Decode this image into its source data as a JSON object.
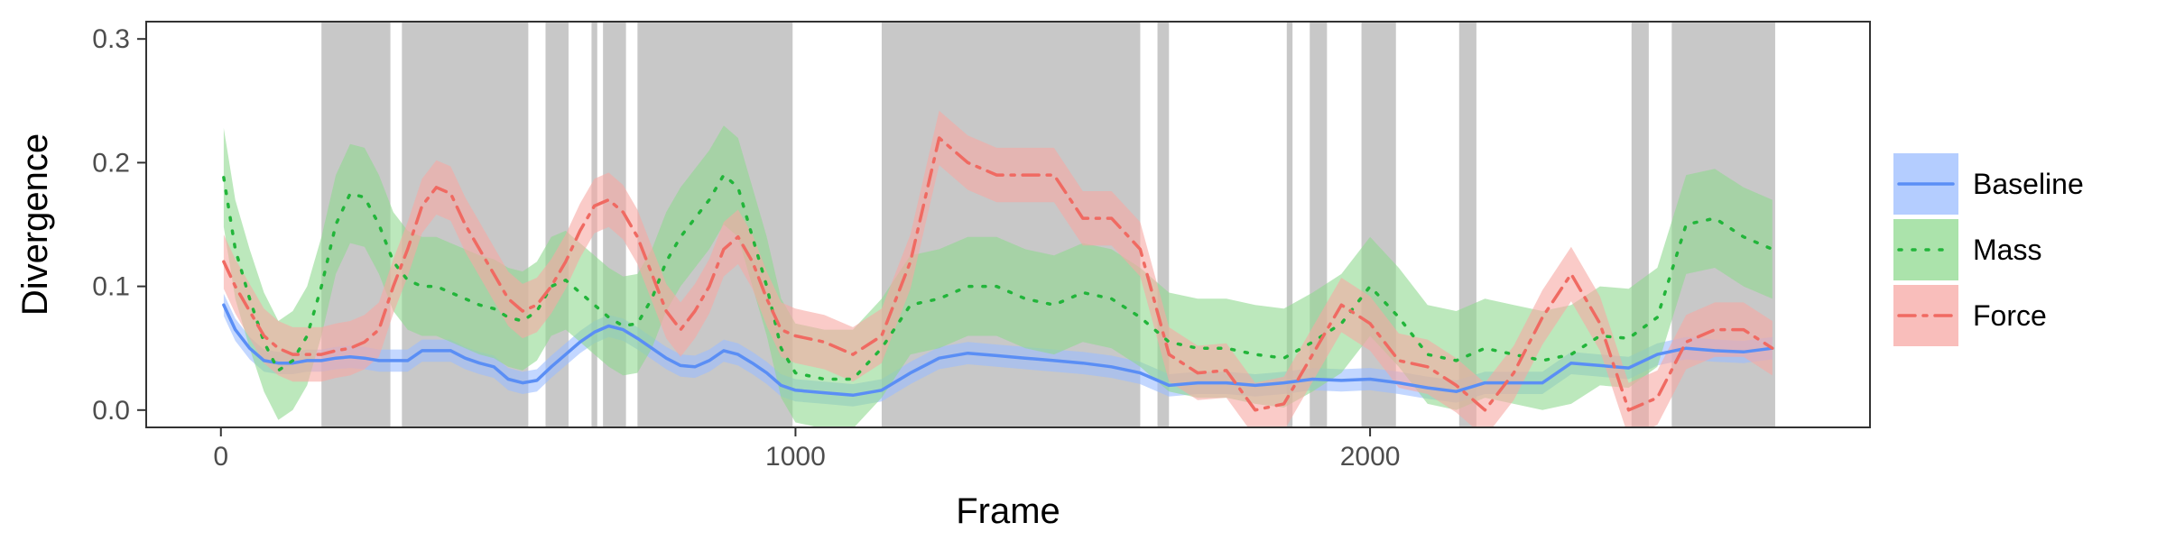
{
  "chart_data": {
    "type": "line",
    "title": "",
    "xlabel": "Frame",
    "ylabel": "Divergence",
    "xlim": [
      -130,
      2870
    ],
    "ylim": [
      -0.014,
      0.314
    ],
    "x_ticks": [
      0,
      1000,
      2000
    ],
    "x_tick_labels": [
      "0",
      "1000",
      "2000"
    ],
    "y_ticks": [
      0.0,
      0.1,
      0.2,
      0.3
    ],
    "y_tick_labels": [
      "0.0",
      "0.1",
      "0.2",
      "0.3"
    ],
    "grid": false,
    "legend_position": "right",
    "shaded_intervals": [
      [
        175,
        295
      ],
      [
        315,
        535
      ],
      [
        565,
        605
      ],
      [
        645,
        655
      ],
      [
        665,
        705
      ],
      [
        725,
        995
      ],
      [
        1150,
        1600
      ],
      [
        1630,
        1650
      ],
      [
        1855,
        1865
      ],
      [
        1895,
        1925
      ],
      [
        1985,
        2045
      ],
      [
        2155,
        2185
      ],
      [
        2455,
        2485
      ],
      [
        2525,
        2705
      ]
    ],
    "shade_color": "#c8c8c8",
    "series": [
      {
        "name": "Baseline",
        "color": "#5a8ef5",
        "band_color": "#9bbcff",
        "linestyle": "solid",
        "points": [
          [
            5,
            0.085
          ],
          [
            25,
            0.065
          ],
          [
            50,
            0.05
          ],
          [
            75,
            0.04
          ],
          [
            100,
            0.038
          ],
          [
            125,
            0.038
          ],
          [
            150,
            0.04
          ],
          [
            175,
            0.04
          ],
          [
            200,
            0.042
          ],
          [
            225,
            0.043
          ],
          [
            250,
            0.042
          ],
          [
            275,
            0.04
          ],
          [
            300,
            0.04
          ],
          [
            325,
            0.04
          ],
          [
            350,
            0.048
          ],
          [
            375,
            0.048
          ],
          [
            400,
            0.048
          ],
          [
            425,
            0.042
          ],
          [
            450,
            0.038
          ],
          [
            475,
            0.035
          ],
          [
            500,
            0.025
          ],
          [
            525,
            0.022
          ],
          [
            550,
            0.024
          ],
          [
            575,
            0.035
          ],
          [
            600,
            0.045
          ],
          [
            625,
            0.055
          ],
          [
            650,
            0.063
          ],
          [
            675,
            0.068
          ],
          [
            700,
            0.065
          ],
          [
            725,
            0.058
          ],
          [
            750,
            0.05
          ],
          [
            775,
            0.042
          ],
          [
            800,
            0.036
          ],
          [
            825,
            0.035
          ],
          [
            850,
            0.04
          ],
          [
            875,
            0.048
          ],
          [
            900,
            0.045
          ],
          [
            925,
            0.038
          ],
          [
            950,
            0.03
          ],
          [
            975,
            0.02
          ],
          [
            1000,
            0.016
          ],
          [
            1050,
            0.014
          ],
          [
            1100,
            0.012
          ],
          [
            1150,
            0.016
          ],
          [
            1200,
            0.03
          ],
          [
            1250,
            0.042
          ],
          [
            1300,
            0.046
          ],
          [
            1350,
            0.044
          ],
          [
            1400,
            0.042
          ],
          [
            1450,
            0.04
          ],
          [
            1500,
            0.038
          ],
          [
            1550,
            0.035
          ],
          [
            1600,
            0.03
          ],
          [
            1650,
            0.02
          ],
          [
            1700,
            0.022
          ],
          [
            1750,
            0.022
          ],
          [
            1800,
            0.02
          ],
          [
            1850,
            0.022
          ],
          [
            1900,
            0.025
          ],
          [
            1950,
            0.024
          ],
          [
            2000,
            0.025
          ],
          [
            2050,
            0.022
          ],
          [
            2100,
            0.018
          ],
          [
            2150,
            0.015
          ],
          [
            2200,
            0.022
          ],
          [
            2250,
            0.022
          ],
          [
            2300,
            0.022
          ],
          [
            2350,
            0.038
          ],
          [
            2400,
            0.036
          ],
          [
            2450,
            0.034
          ],
          [
            2500,
            0.045
          ],
          [
            2550,
            0.05
          ],
          [
            2600,
            0.048
          ],
          [
            2650,
            0.047
          ],
          [
            2700,
            0.05
          ]
        ],
        "band_halfwidth": 0.009
      },
      {
        "name": "Mass",
        "color": "#22b53a",
        "band_color": "#8fd98f",
        "linestyle": "dotted",
        "points": [
          [
            5,
            0.188
          ],
          [
            25,
            0.13
          ],
          [
            50,
            0.09
          ],
          [
            75,
            0.055
          ],
          [
            100,
            0.032
          ],
          [
            125,
            0.04
          ],
          [
            150,
            0.06
          ],
          [
            175,
            0.1
          ],
          [
            200,
            0.15
          ],
          [
            225,
            0.175
          ],
          [
            250,
            0.172
          ],
          [
            275,
            0.15
          ],
          [
            300,
            0.12
          ],
          [
            325,
            0.105
          ],
          [
            350,
            0.1
          ],
          [
            375,
            0.1
          ],
          [
            400,
            0.095
          ],
          [
            425,
            0.09
          ],
          [
            450,
            0.085
          ],
          [
            475,
            0.082
          ],
          [
            500,
            0.075
          ],
          [
            525,
            0.072
          ],
          [
            550,
            0.08
          ],
          [
            575,
            0.1
          ],
          [
            600,
            0.105
          ],
          [
            625,
            0.095
          ],
          [
            650,
            0.085
          ],
          [
            675,
            0.075
          ],
          [
            700,
            0.068
          ],
          [
            725,
            0.07
          ],
          [
            750,
            0.09
          ],
          [
            775,
            0.12
          ],
          [
            800,
            0.14
          ],
          [
            825,
            0.155
          ],
          [
            850,
            0.17
          ],
          [
            875,
            0.19
          ],
          [
            900,
            0.18
          ],
          [
            925,
            0.14
          ],
          [
            950,
            0.1
          ],
          [
            975,
            0.05
          ],
          [
            1000,
            0.03
          ],
          [
            1050,
            0.025
          ],
          [
            1100,
            0.025
          ],
          [
            1150,
            0.05
          ],
          [
            1200,
            0.085
          ],
          [
            1250,
            0.09
          ],
          [
            1300,
            0.1
          ],
          [
            1350,
            0.1
          ],
          [
            1400,
            0.09
          ],
          [
            1450,
            0.085
          ],
          [
            1500,
            0.095
          ],
          [
            1550,
            0.09
          ],
          [
            1600,
            0.075
          ],
          [
            1650,
            0.055
          ],
          [
            1700,
            0.05
          ],
          [
            1750,
            0.05
          ],
          [
            1800,
            0.045
          ],
          [
            1850,
            0.042
          ],
          [
            1900,
            0.055
          ],
          [
            1950,
            0.07
          ],
          [
            2000,
            0.1
          ],
          [
            2050,
            0.075
          ],
          [
            2100,
            0.045
          ],
          [
            2150,
            0.04
          ],
          [
            2200,
            0.05
          ],
          [
            2250,
            0.045
          ],
          [
            2300,
            0.04
          ],
          [
            2350,
            0.045
          ],
          [
            2400,
            0.06
          ],
          [
            2450,
            0.058
          ],
          [
            2500,
            0.075
          ],
          [
            2550,
            0.15
          ],
          [
            2600,
            0.155
          ],
          [
            2650,
            0.14
          ],
          [
            2700,
            0.13
          ]
        ],
        "band_halfwidth": 0.04
      },
      {
        "name": "Force",
        "color": "#f06a62",
        "band_color": "#f7a8a4",
        "linestyle": "dashdot",
        "points": [
          [
            5,
            0.12
          ],
          [
            25,
            0.1
          ],
          [
            50,
            0.08
          ],
          [
            75,
            0.06
          ],
          [
            100,
            0.05
          ],
          [
            125,
            0.045
          ],
          [
            150,
            0.045
          ],
          [
            175,
            0.045
          ],
          [
            200,
            0.048
          ],
          [
            225,
            0.05
          ],
          [
            250,
            0.055
          ],
          [
            275,
            0.065
          ],
          [
            300,
            0.1
          ],
          [
            325,
            0.13
          ],
          [
            350,
            0.165
          ],
          [
            375,
            0.18
          ],
          [
            400,
            0.175
          ],
          [
            425,
            0.15
          ],
          [
            450,
            0.13
          ],
          [
            475,
            0.11
          ],
          [
            500,
            0.09
          ],
          [
            525,
            0.08
          ],
          [
            550,
            0.085
          ],
          [
            575,
            0.1
          ],
          [
            600,
            0.12
          ],
          [
            625,
            0.145
          ],
          [
            650,
            0.165
          ],
          [
            675,
            0.17
          ],
          [
            700,
            0.16
          ],
          [
            725,
            0.14
          ],
          [
            750,
            0.11
          ],
          [
            775,
            0.08
          ],
          [
            800,
            0.065
          ],
          [
            825,
            0.08
          ],
          [
            850,
            0.1
          ],
          [
            875,
            0.13
          ],
          [
            900,
            0.14
          ],
          [
            925,
            0.12
          ],
          [
            950,
            0.09
          ],
          [
            975,
            0.065
          ],
          [
            1000,
            0.06
          ],
          [
            1050,
            0.055
          ],
          [
            1100,
            0.045
          ],
          [
            1150,
            0.06
          ],
          [
            1200,
            0.12
          ],
          [
            1250,
            0.22
          ],
          [
            1300,
            0.2
          ],
          [
            1350,
            0.19
          ],
          [
            1400,
            0.19
          ],
          [
            1450,
            0.19
          ],
          [
            1500,
            0.155
          ],
          [
            1550,
            0.155
          ],
          [
            1600,
            0.13
          ],
          [
            1650,
            0.045
          ],
          [
            1700,
            0.03
          ],
          [
            1750,
            0.032
          ],
          [
            1800,
            0.0
          ],
          [
            1850,
            0.005
          ],
          [
            1900,
            0.045
          ],
          [
            1950,
            0.085
          ],
          [
            2000,
            0.07
          ],
          [
            2050,
            0.04
          ],
          [
            2100,
            0.035
          ],
          [
            2150,
            0.02
          ],
          [
            2200,
            0.0
          ],
          [
            2250,
            0.03
          ],
          [
            2300,
            0.075
          ],
          [
            2350,
            0.11
          ],
          [
            2400,
            0.07
          ],
          [
            2450,
            0.0
          ],
          [
            2500,
            0.01
          ],
          [
            2550,
            0.055
          ],
          [
            2600,
            0.065
          ],
          [
            2650,
            0.065
          ],
          [
            2700,
            0.05
          ]
        ],
        "band_halfwidth": 0.022
      }
    ]
  }
}
